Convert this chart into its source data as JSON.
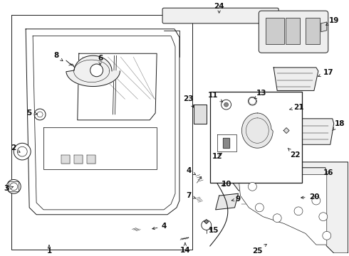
{
  "bg_color": "#ffffff",
  "fig_width": 4.9,
  "fig_height": 3.6,
  "dpi": 100,
  "line_color": "#1a1a1a",
  "lw": 0.7
}
